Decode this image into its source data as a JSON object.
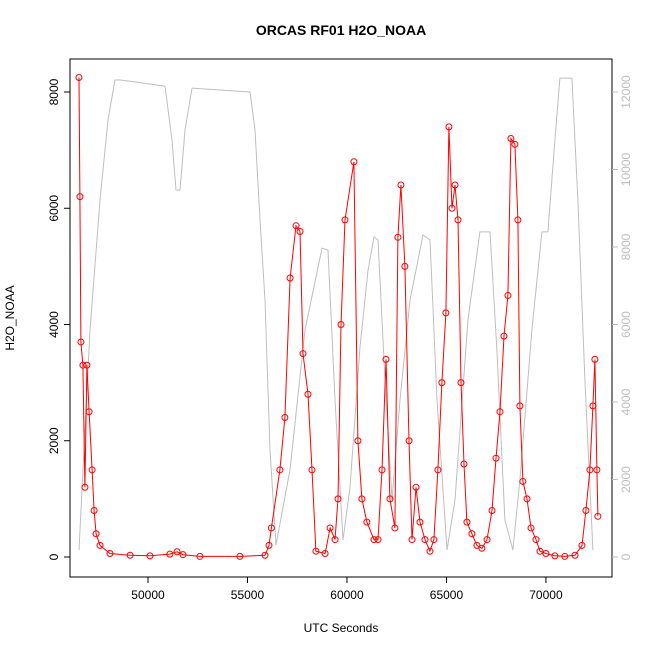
{
  "chart_data": {
    "type": "line",
    "title": "ORCAS RF01 H2O_NOAA",
    "x_label": "UTC Seconds",
    "y_label": "H2O_NOAA",
    "xlim": [
      46080,
      73320
    ],
    "xticks": [
      50000,
      55000,
      60000,
      65000,
      70000
    ],
    "ylim": [
      -344,
      8568
    ],
    "yticks": [
      0,
      2000,
      4000,
      6000,
      8000
    ],
    "y2lim": [
      -516,
      12852
    ],
    "y2ticks": [
      0,
      2000,
      4000,
      6000,
      8000,
      10000,
      12000
    ],
    "series": [
      {
        "color": "#ff0000",
        "markers": true,
        "x": [
          46530,
          46580,
          46630,
          46730,
          46830,
          46930,
          47040,
          47190,
          47290,
          47390,
          47590,
          48090,
          49100,
          50100,
          51100,
          51460,
          51760,
          52610,
          54620,
          55880,
          56080,
          56200,
          56630,
          56880,
          57140,
          57440,
          57640,
          57790,
          58040,
          58240,
          58440,
          58900,
          59150,
          59400,
          59550,
          59700,
          59900,
          60350,
          60550,
          60750,
          61000,
          61360,
          61560,
          61760,
          61960,
          62160,
          62410,
          62560,
          62710,
          62910,
          63120,
          63270,
          63470,
          63670,
          63920,
          64170,
          64370,
          64570,
          64770,
          64970,
          65125,
          65280,
          65430,
          65580,
          65730,
          65880,
          66030,
          66280,
          66530,
          66780,
          67040,
          67290,
          67490,
          67690,
          67890,
          68090,
          68240,
          68440,
          68590,
          68690,
          68840,
          69050,
          69250,
          69500,
          69700,
          70000,
          70450,
          70950,
          71460,
          71810,
          72010,
          72210,
          72360,
          72460,
          72560,
          72610
        ],
        "values": [
          8250,
          6200,
          3700,
          3300,
          1200,
          3300,
          2500,
          1500,
          800,
          400,
          200,
          60,
          30,
          20,
          50,
          90,
          40,
          10,
          10,
          30,
          200,
          500,
          1500,
          2400,
          4800,
          5700,
          5600,
          3500,
          2800,
          1500,
          100,
          60,
          500,
          300,
          1000,
          4000,
          5800,
          6800,
          2000,
          1000,
          600,
          300,
          300,
          1500,
          3400,
          1000,
          500,
          5500,
          6400,
          5000,
          2000,
          300,
          1200,
          600,
          300,
          100,
          300,
          1500,
          3000,
          4200,
          7400,
          6000,
          6400,
          5800,
          3000,
          1600,
          600,
          400,
          200,
          150,
          300,
          800,
          1700,
          2500,
          3800,
          4500,
          7200,
          7100,
          5800,
          2600,
          1300,
          1000,
          500,
          300,
          100,
          60,
          20,
          10,
          30,
          200,
          800,
          1500,
          2600,
          3400,
          1500,
          700
        ]
      },
      {
        "color": "#bebebe",
        "axis": "y2",
        "markers": false,
        "x": [
          46533,
          46734,
          47085,
          47588,
          47990,
          48342,
          48593,
          49347,
          50854,
          51206,
          51407,
          51608,
          51859,
          52211,
          55126,
          55377,
          55628,
          55879,
          56131,
          56432,
          57136,
          57889,
          58744,
          59045,
          59397,
          59799,
          60151,
          60653,
          61055,
          61357,
          61558,
          61909,
          62261,
          62663,
          63166,
          63819,
          64171,
          64523,
          65025,
          65427,
          66080,
          66683,
          67186,
          67537,
          67939,
          68341,
          68693,
          69296,
          69799,
          70100,
          70452,
          70703,
          71306,
          71608,
          71960,
          72362
        ],
        "values": [
          180,
          2250,
          5860,
          9210,
          11280,
          12310,
          12310,
          12260,
          12150,
          10760,
          9470,
          9470,
          11020,
          12100,
          12000,
          11020,
          8700,
          6630,
          2760,
          310,
          2250,
          5860,
          7970,
          7920,
          4050,
          440,
          1800,
          5420,
          7400,
          8260,
          8180,
          4570,
          1470,
          4050,
          6630,
          8310,
          8180,
          4050,
          180,
          1470,
          6110,
          8390,
          8390,
          5340,
          950,
          180,
          1990,
          5860,
          8390,
          8390,
          10760,
          12360,
          12360,
          9210,
          4570,
          180
        ]
      }
    ]
  }
}
